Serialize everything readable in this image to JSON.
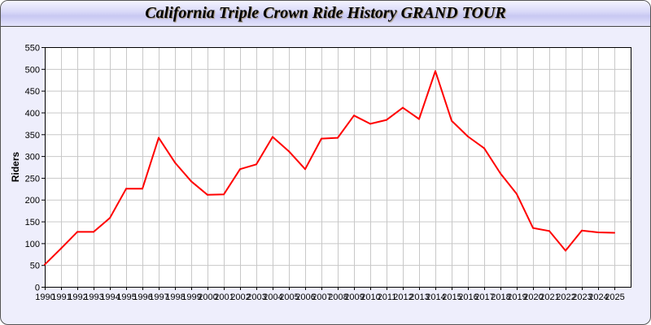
{
  "chart_data": {
    "type": "line",
    "title": "California Triple Crown Ride History GRAND TOUR",
    "xlabel": "",
    "ylabel": "Riders",
    "ylim": [
      0,
      550
    ],
    "yticks": [
      0,
      50,
      100,
      150,
      200,
      250,
      300,
      350,
      400,
      450,
      500,
      550
    ],
    "grid": true,
    "line_color": "#ff0000",
    "categories": [
      "1990",
      "1991",
      "1992",
      "1993",
      "1994",
      "1995",
      "1996",
      "1997",
      "1998",
      "1999",
      "2000",
      "2001",
      "2002",
      "2003",
      "2004",
      "2005",
      "2006",
      "2007",
      "2008",
      "2009",
      "2010",
      "2011",
      "2012",
      "2013",
      "2014",
      "2015",
      "2016",
      "2017",
      "2018",
      "2019",
      "2020",
      "2021",
      "2022",
      "2023",
      "2024",
      "2025"
    ],
    "values": [
      51,
      88,
      126,
      126,
      158,
      225,
      225,
      342,
      285,
      242,
      211,
      212,
      270,
      281,
      344,
      311,
      270,
      340,
      342,
      393,
      374,
      383,
      411,
      385,
      495,
      381,
      345,
      318,
      260,
      213,
      135,
      128,
      83,
      129,
      125,
      124
    ]
  }
}
